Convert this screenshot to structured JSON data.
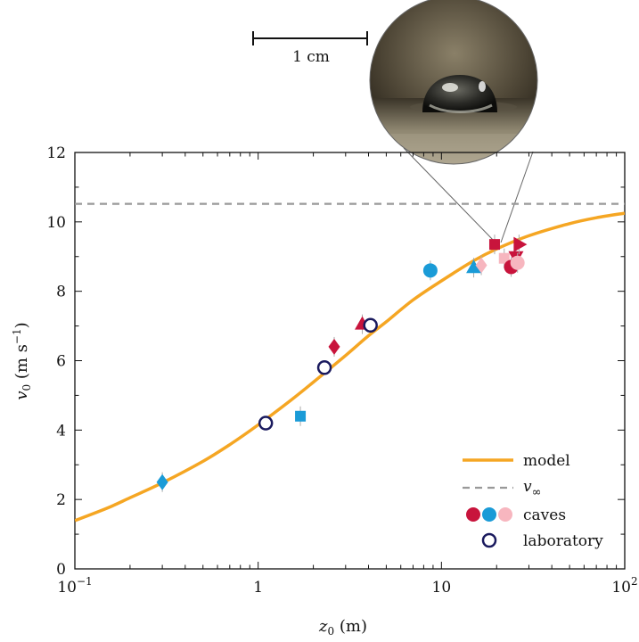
{
  "chart_data": {
    "type": "scatter",
    "x_scale": "log",
    "xlim": [
      0.1,
      100
    ],
    "ylim": [
      0,
      12
    ],
    "xticks": [
      {
        "value": 0.1,
        "base": "10",
        "exp": "−1"
      },
      {
        "value": 1,
        "base": "1",
        "exp": ""
      },
      {
        "value": 10,
        "base": "10",
        "exp": ""
      },
      {
        "value": 100,
        "base": "10",
        "exp": "2"
      }
    ],
    "yticks": [
      "0",
      "2",
      "4",
      "6",
      "8",
      "10",
      "12"
    ],
    "xlabel": {
      "var": "z",
      "sub": "0",
      "unit": " (m)"
    },
    "ylabel": {
      "var": "v",
      "sub": "0",
      "unit": " (m s",
      "sup": "−1",
      "close": ")"
    },
    "v_inf": 10.52,
    "colors": {
      "model": "#f5a623",
      "v_inf_line": "#999999",
      "cave_red": "#c8143c",
      "cave_blue": "#1a9bd7",
      "cave_pink": "#f7b6bf",
      "lab": "#1a1a5e"
    },
    "model": {
      "name": "model",
      "points": [
        [
          0.1,
          1.39
        ],
        [
          0.15,
          1.75
        ],
        [
          0.2,
          2.05
        ],
        [
          0.3,
          2.48
        ],
        [
          0.5,
          3.1
        ],
        [
          0.7,
          3.58
        ],
        [
          1.0,
          4.15
        ],
        [
          1.5,
          4.85
        ],
        [
          2.0,
          5.38
        ],
        [
          3.0,
          6.15
        ],
        [
          4.0,
          6.72
        ],
        [
          5.0,
          7.12
        ],
        [
          7.0,
          7.75
        ],
        [
          10.0,
          8.3
        ],
        [
          15.0,
          8.88
        ],
        [
          20.0,
          9.22
        ],
        [
          30.0,
          9.6
        ],
        [
          50.0,
          9.95
        ],
        [
          70.0,
          10.12
        ],
        [
          100.0,
          10.25
        ]
      ]
    },
    "caves": [
      {
        "x": 0.3,
        "y": 2.5,
        "shape": "diamond",
        "color": "blue"
      },
      {
        "x": 1.7,
        "y": 4.4,
        "shape": "square",
        "color": "blue"
      },
      {
        "x": 2.6,
        "y": 6.4,
        "shape": "diamond",
        "color": "red"
      },
      {
        "x": 3.7,
        "y": 7.05,
        "shape": "triangle-up",
        "color": "red"
      },
      {
        "x": 8.7,
        "y": 8.6,
        "shape": "circle",
        "color": "blue"
      },
      {
        "x": 15.0,
        "y": 8.68,
        "shape": "triangle-up",
        "color": "blue"
      },
      {
        "x": 16.5,
        "y": 8.75,
        "shape": "diamond",
        "color": "pink"
      },
      {
        "x": 19.5,
        "y": 9.35,
        "shape": "square",
        "color": "red"
      },
      {
        "x": 22.0,
        "y": 8.95,
        "shape": "square",
        "color": "pink"
      },
      {
        "x": 24.0,
        "y": 8.7,
        "shape": "circle",
        "color": "red"
      },
      {
        "x": 25.5,
        "y": 9.0,
        "shape": "triangle-down",
        "color": "red"
      },
      {
        "x": 26.5,
        "y": 9.35,
        "shape": "triangle-right",
        "color": "red"
      },
      {
        "x": 26.0,
        "y": 8.82,
        "shape": "circle",
        "color": "pink"
      }
    ],
    "laboratory": [
      {
        "x": 1.1,
        "y": 4.2
      },
      {
        "x": 2.3,
        "y": 5.8
      },
      {
        "x": 4.1,
        "y": 7.02
      }
    ],
    "legend": {
      "placement": "bottom-right",
      "items": [
        {
          "label": "model",
          "kind": "line"
        },
        {
          "label": "v",
          "sub": "∞",
          "kind": "dashed"
        },
        {
          "label": "caves",
          "kind": "caves"
        },
        {
          "label": "laboratory",
          "kind": "lab"
        }
      ]
    },
    "scale_bar": "1 cm"
  }
}
